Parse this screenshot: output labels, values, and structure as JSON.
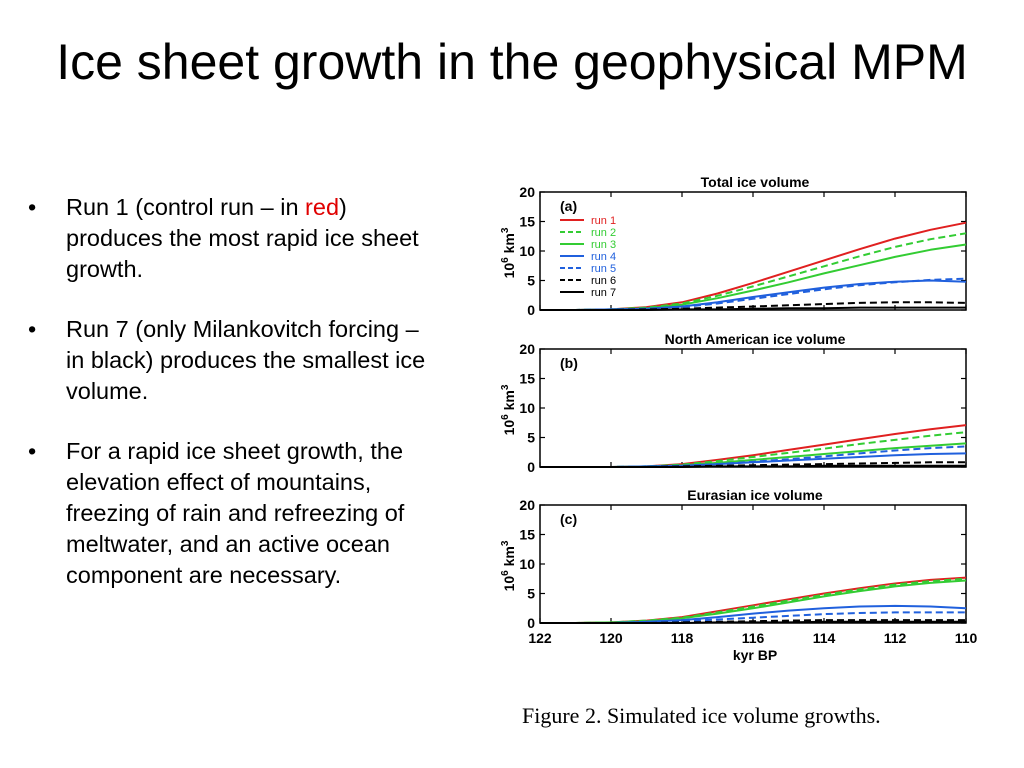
{
  "slide": {
    "title": "Ice sheet growth in the geophysical MPM",
    "bullets": [
      {
        "before": "Run 1 (control run – in ",
        "highlight": "red",
        "after": ") produces the most rapid ice sheet growth."
      },
      {
        "before": "Run 7 (only Milankovitch forcing – in black) produces the smallest ice volume.",
        "highlight": "",
        "after": ""
      },
      {
        "before": "For a rapid ice sheet growth, the elevation effect of mountains, freezing of rain and refreezing of meltwater, and an active ocean component are necessary.",
        "highlight": "",
        "after": ""
      }
    ],
    "caption": "Figure 2. Simulated ice volume growths."
  },
  "colors": {
    "highlight": "#e00000"
  },
  "chart_data": [
    {
      "type": "line",
      "title": "Total ice volume",
      "panel_label": "(a)",
      "ylabel": "10^6 km^3",
      "ylim": [
        0,
        20
      ],
      "yticks": [
        0,
        5,
        10,
        15,
        20
      ],
      "xlim": [
        122,
        110
      ],
      "x": [
        122,
        121,
        120,
        119,
        118,
        117,
        116,
        115,
        114,
        113,
        112,
        111,
        110
      ],
      "legend": "top-left",
      "series": [
        {
          "name": "run 1",
          "color": "#e02020",
          "dash": "solid",
          "values": [
            0,
            0,
            0.1,
            0.5,
            1.3,
            2.8,
            4.6,
            6.5,
            8.4,
            10.3,
            12.1,
            13.6,
            14.8
          ]
        },
        {
          "name": "run 2",
          "color": "#33cc33",
          "dash": "dashed",
          "values": [
            0,
            0,
            0.1,
            0.4,
            1.1,
            2.4,
            4.0,
            5.7,
            7.4,
            9.1,
            10.7,
            12.0,
            13.0
          ]
        },
        {
          "name": "run 3",
          "color": "#33cc33",
          "dash": "solid",
          "values": [
            0,
            0,
            0.1,
            0.3,
            0.9,
            2.0,
            3.3,
            4.7,
            6.2,
            7.6,
            9.0,
            10.2,
            11.1
          ]
        },
        {
          "name": "run 4",
          "color": "#2060dd",
          "dash": "solid",
          "values": [
            0,
            0,
            0.1,
            0.2,
            0.6,
            1.3,
            2.2,
            3.0,
            3.8,
            4.4,
            4.8,
            5.0,
            4.8
          ]
        },
        {
          "name": "run 5",
          "color": "#2060dd",
          "dash": "dashed",
          "values": [
            0,
            0,
            0.1,
            0.2,
            0.5,
            1.1,
            1.9,
            2.7,
            3.5,
            4.2,
            4.7,
            5.1,
            5.3
          ]
        },
        {
          "name": "run 6",
          "color": "#000000",
          "dash": "dashed",
          "values": [
            0,
            0,
            0,
            0.1,
            0.2,
            0.4,
            0.6,
            0.8,
            1.0,
            1.2,
            1.3,
            1.3,
            1.2
          ]
        },
        {
          "name": "run 7",
          "color": "#000000",
          "dash": "solid",
          "values": [
            0,
            0,
            0,
            0,
            0.1,
            0.1,
            0.2,
            0.3,
            0.3,
            0.4,
            0.4,
            0.4,
            0.4
          ]
        }
      ]
    },
    {
      "type": "line",
      "title": "North American ice volume",
      "panel_label": "(b)",
      "ylabel": "10^6 km^3",
      "ylim": [
        0,
        20
      ],
      "yticks": [
        0,
        5,
        10,
        15,
        20
      ],
      "xlim": [
        122,
        110
      ],
      "x": [
        122,
        121,
        120,
        119,
        118,
        117,
        116,
        115,
        114,
        113,
        112,
        111,
        110
      ],
      "series": [
        {
          "name": "run 1",
          "color": "#e02020",
          "dash": "solid",
          "values": [
            0,
            0,
            0,
            0.1,
            0.5,
            1.2,
            2.0,
            2.9,
            3.8,
            4.7,
            5.6,
            6.4,
            7.1
          ]
        },
        {
          "name": "run 2",
          "color": "#33cc33",
          "dash": "dashed",
          "values": [
            0,
            0,
            0,
            0.1,
            0.4,
            1.0,
            1.7,
            2.4,
            3.1,
            3.9,
            4.6,
            5.3,
            5.9
          ]
        },
        {
          "name": "run 3",
          "color": "#33cc33",
          "dash": "solid",
          "values": [
            0,
            0,
            0,
            0.1,
            0.3,
            0.7,
            1.2,
            1.7,
            2.2,
            2.7,
            3.2,
            3.6,
            4.0
          ]
        },
        {
          "name": "run 4",
          "color": "#2060dd",
          "dash": "solid",
          "values": [
            0,
            0,
            0,
            0.1,
            0.2,
            0.5,
            0.8,
            1.1,
            1.4,
            1.7,
            2.0,
            2.2,
            2.3
          ]
        },
        {
          "name": "run 5",
          "color": "#2060dd",
          "dash": "dashed",
          "values": [
            0,
            0,
            0,
            0.1,
            0.2,
            0.5,
            0.9,
            1.3,
            1.8,
            2.3,
            2.8,
            3.2,
            3.5
          ]
        },
        {
          "name": "run 6",
          "color": "#000000",
          "dash": "dashed",
          "values": [
            0,
            0,
            0,
            0,
            0.1,
            0.2,
            0.3,
            0.4,
            0.5,
            0.6,
            0.7,
            0.8,
            0.8
          ]
        },
        {
          "name": "run 7",
          "color": "#000000",
          "dash": "solid",
          "values": [
            0,
            0,
            0,
            0,
            0,
            0.1,
            0.1,
            0.1,
            0.2,
            0.2,
            0.2,
            0.2,
            0.2
          ]
        }
      ]
    },
    {
      "type": "line",
      "title": "Eurasian ice volume",
      "panel_label": "(c)",
      "ylabel": "10^6 km^3",
      "ylim": [
        0,
        20
      ],
      "yticks": [
        0,
        5,
        10,
        15,
        20
      ],
      "xlim": [
        122,
        110
      ],
      "x": [
        122,
        121,
        120,
        119,
        118,
        117,
        116,
        115,
        114,
        113,
        112,
        111,
        110
      ],
      "xticks": [
        122,
        120,
        118,
        116,
        114,
        112,
        110
      ],
      "xlabel": "kyr BP",
      "series": [
        {
          "name": "run 1",
          "color": "#e02020",
          "dash": "solid",
          "values": [
            0,
            0,
            0.1,
            0.4,
            1.0,
            2.0,
            3.0,
            4.0,
            5.0,
            5.9,
            6.7,
            7.3,
            7.7
          ]
        },
        {
          "name": "run 2",
          "color": "#33cc33",
          "dash": "dashed",
          "values": [
            0,
            0,
            0.1,
            0.4,
            0.9,
            1.8,
            2.8,
            3.8,
            4.8,
            5.7,
            6.5,
            7.1,
            7.5
          ]
        },
        {
          "name": "run 3",
          "color": "#33cc33",
          "dash": "solid",
          "values": [
            0,
            0,
            0.1,
            0.3,
            0.8,
            1.6,
            2.5,
            3.5,
            4.5,
            5.4,
            6.2,
            6.8,
            7.2
          ]
        },
        {
          "name": "run 4",
          "color": "#2060dd",
          "dash": "solid",
          "values": [
            0,
            0,
            0,
            0.2,
            0.5,
            1.0,
            1.6,
            2.1,
            2.5,
            2.8,
            2.9,
            2.8,
            2.5
          ]
        },
        {
          "name": "run 5",
          "color": "#2060dd",
          "dash": "dashed",
          "values": [
            0,
            0,
            0,
            0.1,
            0.3,
            0.6,
            0.9,
            1.2,
            1.5,
            1.7,
            1.8,
            1.8,
            1.8
          ]
        },
        {
          "name": "run 6",
          "color": "#000000",
          "dash": "dashed",
          "values": [
            0,
            0,
            0,
            0,
            0.1,
            0.2,
            0.3,
            0.4,
            0.5,
            0.5,
            0.5,
            0.5,
            0.5
          ]
        },
        {
          "name": "run 7",
          "color": "#000000",
          "dash": "solid",
          "values": [
            0,
            0,
            0,
            0,
            0,
            0.1,
            0.1,
            0.1,
            0.2,
            0.2,
            0.2,
            0.2,
            0.2
          ]
        }
      ]
    }
  ]
}
